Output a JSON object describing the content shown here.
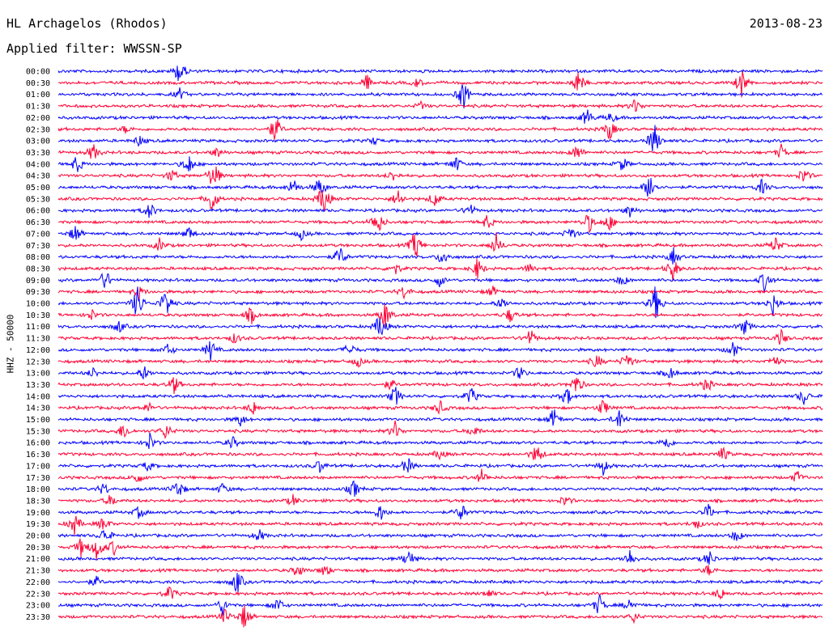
{
  "header": {
    "station": "HL Archagelos (Rhodos)",
    "date": "2013-08-23",
    "filter": "Applied filter: WWSSN-SP"
  },
  "chart_data": {
    "type": "line",
    "title": "HL Archagelos (Rhodos)",
    "subtitle": "Applied filter: WWSSN-SP",
    "ylabel": "HHZ - 50000",
    "xlabel": "",
    "grid": false,
    "legend": "none",
    "colors": [
      "#0000ff",
      "#ff0033"
    ],
    "rows": [
      {
        "label": "00:00",
        "color": "#0000ff",
        "events": [
          [
            222,
            0.8
          ],
          [
            40,
            0.1
          ]
        ]
      },
      {
        "label": "00:30",
        "color": "#ff0033",
        "events": [
          [
            453,
            0.45
          ],
          [
            714,
            0.7
          ],
          [
            916,
            0.8
          ],
          [
            515,
            0.25
          ]
        ]
      },
      {
        "label": "01:00",
        "color": "#0000ff",
        "events": [
          [
            572,
            0.9
          ],
          [
            222,
            0.3
          ]
        ]
      },
      {
        "label": "01:30",
        "color": "#ff0033",
        "events": [
          [
            785,
            0.4
          ],
          [
            520,
            0.2
          ]
        ]
      },
      {
        "label": "02:00",
        "color": "#0000ff",
        "events": [
          [
            725,
            0.5
          ],
          [
            755,
            0.3
          ]
        ]
      },
      {
        "label": "02:30",
        "color": "#ff0033",
        "events": [
          [
            340,
            0.8
          ],
          [
            753,
            0.6
          ],
          [
            155,
            0.2
          ]
        ]
      },
      {
        "label": "03:00",
        "color": "#0000ff",
        "events": [
          [
            808,
            1.0
          ],
          [
            172,
            0.3
          ],
          [
            462,
            0.2
          ]
        ]
      },
      {
        "label": "03:30",
        "color": "#ff0033",
        "events": [
          [
            115,
            0.5
          ],
          [
            713,
            0.45
          ],
          [
            965,
            0.4
          ],
          [
            268,
            0.3
          ]
        ]
      },
      {
        "label": "04:00",
        "color": "#0000ff",
        "events": [
          [
            95,
            0.5
          ],
          [
            233,
            0.6
          ],
          [
            563,
            0.45
          ],
          [
            769,
            0.4
          ]
        ]
      },
      {
        "label": "04:30",
        "color": "#ff0033",
        "events": [
          [
            264,
            0.9
          ],
          [
            993,
            0.45
          ],
          [
            212,
            0.35
          ],
          [
            485,
            0.3
          ]
        ]
      },
      {
        "label": "05:00",
        "color": "#0000ff",
        "events": [
          [
            803,
            0.9
          ],
          [
            395,
            0.6
          ],
          [
            941,
            0.4
          ],
          [
            362,
            0.5
          ]
        ]
      },
      {
        "label": "05:30",
        "color": "#ff0033",
        "events": [
          [
            400,
            1.0
          ],
          [
            262,
            0.8
          ],
          [
            492,
            0.5
          ],
          [
            537,
            0.45
          ]
        ]
      },
      {
        "label": "06:00",
        "color": "#0000ff",
        "events": [
          [
            185,
            0.5
          ],
          [
            580,
            0.4
          ],
          [
            778,
            0.35
          ]
        ]
      },
      {
        "label": "06:30",
        "color": "#ff0033",
        "events": [
          [
            466,
            0.8
          ],
          [
            727,
            0.6
          ],
          [
            752,
            0.5
          ],
          [
            602,
            0.4
          ]
        ]
      },
      {
        "label": "07:00",
        "color": "#0000ff",
        "events": [
          [
            93,
            0.5
          ],
          [
            233,
            0.4
          ],
          [
            372,
            0.3
          ],
          [
            705,
            0.4
          ]
        ]
      },
      {
        "label": "07:30",
        "color": "#ff0033",
        "events": [
          [
            513,
            0.9
          ],
          [
            613,
            0.6
          ],
          [
            197,
            0.35
          ],
          [
            958,
            0.45
          ]
        ]
      },
      {
        "label": "08:00",
        "color": "#0000ff",
        "events": [
          [
            420,
            0.6
          ],
          [
            547,
            0.5
          ],
          [
            832,
            0.45
          ]
        ]
      },
      {
        "label": "08:30",
        "color": "#ff0033",
        "events": [
          [
            590,
            0.6
          ],
          [
            831,
            0.7
          ],
          [
            488,
            0.35
          ],
          [
            655,
            0.3
          ]
        ]
      },
      {
        "label": "09:00",
        "color": "#0000ff",
        "events": [
          [
            130,
            0.6
          ],
          [
            945,
            0.6
          ],
          [
            543,
            0.35
          ],
          [
            769,
            0.35
          ]
        ]
      },
      {
        "label": "09:30",
        "color": "#ff0033",
        "events": [
          [
            500,
            0.4
          ],
          [
            608,
            0.3
          ],
          [
            172,
            0.35
          ]
        ]
      },
      {
        "label": "10:00",
        "color": "#0000ff",
        "events": [
          [
            170,
            1.0
          ],
          [
            205,
            0.9
          ],
          [
            810,
            1.0
          ],
          [
            955,
            0.6
          ],
          [
            620,
            0.35
          ]
        ]
      },
      {
        "label": "10:30",
        "color": "#ff0033",
        "events": [
          [
            476,
            0.8
          ],
          [
            310,
            0.5
          ],
          [
            630,
            0.4
          ],
          [
            113,
            0.3
          ]
        ]
      },
      {
        "label": "11:00",
        "color": "#0000ff",
        "events": [
          [
            470,
            0.8
          ],
          [
            147,
            0.35
          ],
          [
            920,
            0.45
          ]
        ]
      },
      {
        "label": "11:30",
        "color": "#ff0033",
        "events": [
          [
            655,
            0.5
          ],
          [
            965,
            0.45
          ],
          [
            290,
            0.3
          ]
        ]
      },
      {
        "label": "12:00",
        "color": "#0000ff",
        "events": [
          [
            260,
            0.6
          ],
          [
            208,
            0.35
          ],
          [
            905,
            0.5
          ],
          [
            432,
            0.4
          ]
        ]
      },
      {
        "label": "12:30",
        "color": "#ff0033",
        "events": [
          [
            775,
            0.5
          ],
          [
            737,
            0.4
          ],
          [
            442,
            0.3
          ],
          [
            957,
            0.35
          ]
        ]
      },
      {
        "label": "13:00",
        "color": "#0000ff",
        "events": [
          [
            178,
            0.4
          ],
          [
            642,
            0.4
          ],
          [
            828,
            0.35
          ],
          [
            115,
            0.3
          ]
        ]
      },
      {
        "label": "13:30",
        "color": "#ff0033",
        "events": [
          [
            215,
            0.5
          ],
          [
            712,
            0.6
          ],
          [
            873,
            0.4
          ],
          [
            482,
            0.3
          ]
        ]
      },
      {
        "label": "14:00",
        "color": "#0000ff",
        "events": [
          [
            488,
            0.6
          ],
          [
            582,
            0.5
          ],
          [
            700,
            0.55
          ],
          [
            993,
            0.45
          ]
        ]
      },
      {
        "label": "14:30",
        "color": "#ff0033",
        "events": [
          [
            313,
            0.4
          ],
          [
            543,
            0.4
          ],
          [
            745,
            0.5
          ],
          [
            183,
            0.3
          ]
        ]
      },
      {
        "label": "15:00",
        "color": "#0000ff",
        "events": [
          [
            684,
            0.6
          ],
          [
            765,
            0.6
          ],
          [
            297,
            0.35
          ]
        ]
      },
      {
        "label": "15:30",
        "color": "#ff0033",
        "events": [
          [
            153,
            0.5
          ],
          [
            205,
            0.45
          ],
          [
            488,
            0.5
          ],
          [
            585,
            0.35
          ]
        ]
      },
      {
        "label": "16:00",
        "color": "#0000ff",
        "events": [
          [
            185,
            0.5
          ],
          [
            287,
            0.35
          ],
          [
            823,
            0.4
          ]
        ]
      },
      {
        "label": "16:30",
        "color": "#ff0033",
        "events": [
          [
            663,
            0.6
          ],
          [
            893,
            0.4
          ],
          [
            543,
            0.3
          ]
        ]
      },
      {
        "label": "17:00",
        "color": "#0000ff",
        "events": [
          [
            503,
            0.5
          ],
          [
            745,
            0.45
          ],
          [
            395,
            0.35
          ],
          [
            182,
            0.3
          ]
        ]
      },
      {
        "label": "17:30",
        "color": "#ff0033",
        "events": [
          [
            170,
            0.35
          ],
          [
            595,
            0.4
          ],
          [
            985,
            0.35
          ]
        ]
      },
      {
        "label": "18:00",
        "color": "#0000ff",
        "events": [
          [
            220,
            0.6
          ],
          [
            437,
            0.5
          ],
          [
            128,
            0.35
          ],
          [
            275,
            0.3
          ]
        ]
      },
      {
        "label": "18:30",
        "color": "#ff0033",
        "events": [
          [
            137,
            0.35
          ],
          [
            362,
            0.3
          ],
          [
            698,
            0.3
          ]
        ]
      },
      {
        "label": "19:00",
        "color": "#0000ff",
        "events": [
          [
            470,
            0.5
          ],
          [
            570,
            0.5
          ],
          [
            875,
            0.45
          ],
          [
            172,
            0.35
          ]
        ]
      },
      {
        "label": "19:30",
        "color": "#ff0033",
        "events": [
          [
            92,
            0.6
          ],
          [
            128,
            0.4
          ],
          [
            860,
            0.3
          ]
        ]
      },
      {
        "label": "20:00",
        "color": "#0000ff",
        "events": [
          [
            130,
            0.5
          ],
          [
            320,
            0.35
          ],
          [
            910,
            0.35
          ]
        ]
      },
      {
        "label": "20:30",
        "color": "#ff0033",
        "events": [
          [
            120,
            0.8
          ],
          [
            100,
            0.5
          ],
          [
            140,
            0.4
          ]
        ]
      },
      {
        "label": "21:00",
        "color": "#0000ff",
        "events": [
          [
            505,
            0.55
          ],
          [
            778,
            0.5
          ],
          [
            876,
            0.45
          ]
        ]
      },
      {
        "label": "21:30",
        "color": "#ff0033",
        "events": [
          [
            368,
            0.4
          ],
          [
            402,
            0.35
          ],
          [
            875,
            0.3
          ]
        ]
      },
      {
        "label": "22:00",
        "color": "#0000ff",
        "events": [
          [
            293,
            0.7
          ],
          [
            118,
            0.3
          ]
        ]
      },
      {
        "label": "22:30",
        "color": "#ff0033",
        "events": [
          [
            210,
            0.45
          ],
          [
            890,
            0.35
          ],
          [
            603,
            0.25
          ]
        ]
      },
      {
        "label": "23:00",
        "color": "#0000ff",
        "events": [
          [
            275,
            0.5
          ],
          [
            343,
            0.45
          ],
          [
            740,
            0.6
          ],
          [
            778,
            0.4
          ]
        ]
      },
      {
        "label": "23:30",
        "color": "#ff0033",
        "events": [
          [
            278,
            0.4
          ],
          [
            302,
            0.7
          ],
          [
            783,
            0.3
          ]
        ]
      }
    ]
  }
}
